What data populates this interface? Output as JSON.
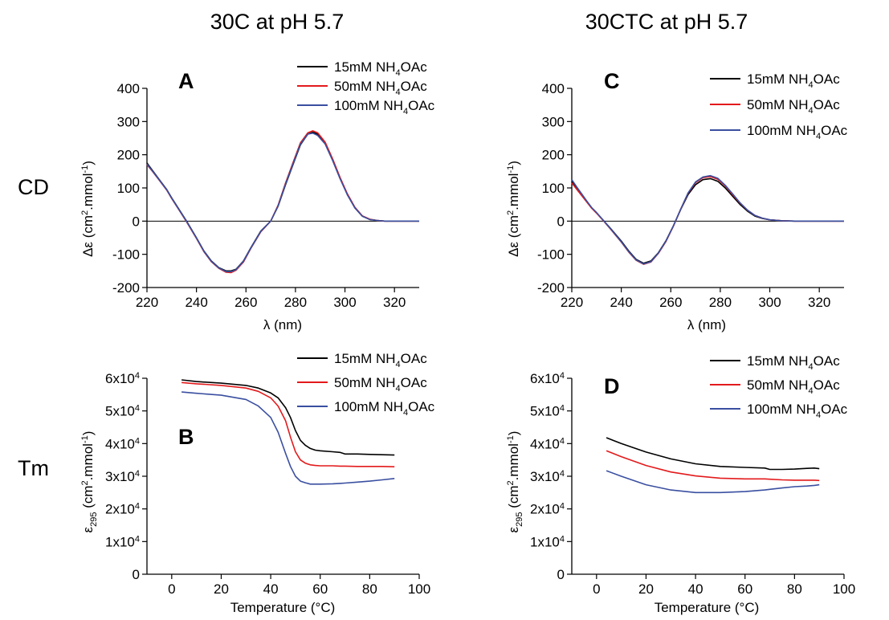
{
  "column_titles": [
    "30C at pH 5.7",
    "30CTC at pH 5.7"
  ],
  "row_labels": [
    "CD",
    "Tm"
  ],
  "colors": {
    "s15": "#000000",
    "s50": "#e31a1c",
    "s100": "#3a4fa0"
  },
  "chart_data": [
    {
      "panel": "A",
      "type": "line",
      "ylabel": "Δε (cm².mmol⁻¹)",
      "xlabel": "λ (nm)",
      "xlim": [
        220,
        330
      ],
      "ylim": [
        -200,
        400
      ],
      "xticks": [
        220,
        240,
        260,
        280,
        300,
        320
      ],
      "yticks": [
        -200,
        -100,
        0,
        100,
        200,
        300,
        400
      ],
      "zero_line": true,
      "legend_position": "top-right",
      "x": [
        220,
        222,
        225,
        228,
        230,
        233,
        236,
        240,
        243,
        246,
        249,
        252,
        254,
        256,
        259,
        262,
        266,
        270,
        273,
        276,
        279,
        282,
        285,
        287,
        289,
        292,
        295,
        298,
        301,
        304,
        307,
        310,
        313,
        316,
        320,
        325,
        330
      ],
      "series": [
        {
          "name": "15mM NH4OAc",
          "values": [
            175,
            155,
            125,
            95,
            70,
            35,
            0,
            -50,
            -90,
            -120,
            -140,
            -150,
            -150,
            -145,
            -120,
            -80,
            -30,
            0,
            45,
            110,
            170,
            230,
            262,
            268,
            262,
            235,
            185,
            130,
            80,
            40,
            15,
            5,
            2,
            0,
            0,
            0,
            0
          ]
        },
        {
          "name": "50mM NH4OAc",
          "values": [
            170,
            152,
            123,
            93,
            68,
            33,
            -2,
            -52,
            -92,
            -122,
            -142,
            -154,
            -155,
            -148,
            -123,
            -82,
            -32,
            0,
            48,
            115,
            176,
            236,
            266,
            272,
            266,
            238,
            188,
            132,
            82,
            42,
            16,
            6,
            2,
            0,
            0,
            0,
            0
          ]
        },
        {
          "name": "100mM NH4OAc",
          "values": [
            172,
            153,
            124,
            94,
            69,
            34,
            -1,
            -51,
            -91,
            -121,
            -141,
            -152,
            -152,
            -146,
            -121,
            -81,
            -31,
            0,
            46,
            112,
            172,
            232,
            262,
            265,
            258,
            232,
            183,
            128,
            79,
            40,
            15,
            5,
            2,
            0,
            0,
            0,
            0
          ]
        }
      ]
    },
    {
      "panel": "B",
      "type": "line",
      "ylabel": "ε295 (cm².mmol⁻¹)",
      "xlabel": "Temperature (°C)",
      "xlim": [
        -10,
        100
      ],
      "ylim": [
        0,
        60000
      ],
      "xticks": [
        0,
        20,
        40,
        60,
        80,
        100
      ],
      "yticks": [
        0,
        10000,
        20000,
        30000,
        40000,
        50000,
        60000
      ],
      "ytick_labels": [
        "0",
        "1x10⁴",
        "2x10⁴",
        "3x10⁴",
        "4x10⁴",
        "5x10⁴",
        "6x10⁴"
      ],
      "legend_position": "top-right",
      "x": [
        4,
        10,
        20,
        30,
        35,
        40,
        43,
        46,
        48,
        50,
        52,
        54,
        56,
        58,
        60,
        65,
        68,
        70,
        75,
        80,
        85,
        90
      ],
      "series": [
        {
          "name": "15mM NH4OAc",
          "values": [
            59500,
            59000,
            58500,
            57800,
            57000,
            55500,
            54000,
            51000,
            48000,
            44000,
            41000,
            39500,
            38500,
            38000,
            37800,
            37500,
            37300,
            36800,
            36800,
            36700,
            36600,
            36500
          ]
        },
        {
          "name": "50mM NH4OAc",
          "values": [
            58700,
            58300,
            57800,
            57000,
            56000,
            54000,
            51500,
            47000,
            42000,
            37500,
            35000,
            34000,
            33500,
            33300,
            33200,
            33200,
            33100,
            33100,
            33000,
            33000,
            33000,
            32900
          ]
        },
        {
          "name": "100mM NH4OAc",
          "values": [
            55800,
            55400,
            54800,
            53500,
            51500,
            48000,
            43500,
            37000,
            33000,
            30000,
            28500,
            28000,
            27600,
            27600,
            27600,
            27700,
            27800,
            27900,
            28200,
            28500,
            28900,
            29300
          ]
        }
      ]
    },
    {
      "panel": "C",
      "type": "line",
      "ylabel": "Δε (cm².mmol⁻¹)",
      "xlabel": "λ (nm)",
      "xlim": [
        220,
        330
      ],
      "ylim": [
        -200,
        400
      ],
      "xticks": [
        220,
        240,
        260,
        280,
        300,
        320
      ],
      "yticks": [
        -200,
        -100,
        0,
        100,
        200,
        300,
        400
      ],
      "zero_line": true,
      "legend_position": "top-right",
      "x": [
        220,
        222,
        224,
        226,
        228,
        230,
        233,
        236,
        240,
        243,
        246,
        249,
        252,
        255,
        258,
        261,
        264,
        267,
        270,
        273,
        276,
        279,
        282,
        285,
        288,
        291,
        294,
        297,
        300,
        305,
        310,
        315,
        320,
        325,
        330
      ],
      "series": [
        {
          "name": "15mM NH4OAc",
          "values": [
            120,
            100,
            80,
            60,
            40,
            25,
            0,
            -25,
            -60,
            -90,
            -115,
            -127,
            -120,
            -95,
            -60,
            -15,
            35,
            80,
            110,
            125,
            128,
            120,
            100,
            75,
            50,
            30,
            15,
            8,
            4,
            1,
            0,
            0,
            0,
            0,
            0
          ]
        },
        {
          "name": "50mM NH4OAc",
          "values": [
            115,
            96,
            77,
            58,
            39,
            24,
            -1,
            -27,
            -63,
            -93,
            -118,
            -130,
            -123,
            -97,
            -62,
            -16,
            36,
            84,
            116,
            131,
            134,
            126,
            106,
            80,
            54,
            33,
            17,
            9,
            4,
            1,
            0,
            0,
            0,
            0,
            0
          ]
        },
        {
          "name": "100mM NH4OAc",
          "values": [
            125,
            103,
            82,
            61,
            41,
            26,
            0,
            -26,
            -62,
            -92,
            -117,
            -129,
            -122,
            -96,
            -61,
            -15,
            36,
            85,
            118,
            133,
            137,
            129,
            108,
            82,
            55,
            33,
            17,
            9,
            4,
            1,
            0,
            0,
            0,
            0,
            0
          ]
        }
      ]
    },
    {
      "panel": "D",
      "type": "line",
      "ylabel": "ε295 (cm².mmol⁻¹)",
      "xlabel": "Temperature (°C)",
      "xlim": [
        -10,
        100
      ],
      "ylim": [
        0,
        60000
      ],
      "xticks": [
        0,
        20,
        40,
        60,
        80,
        100
      ],
      "yticks": [
        0,
        10000,
        20000,
        30000,
        40000,
        50000,
        60000
      ],
      "ytick_labels": [
        "0",
        "1x10⁴",
        "2x10⁴",
        "3x10⁴",
        "4x10⁴",
        "5x10⁴",
        "6x10⁴"
      ],
      "legend_position": "top-right",
      "x": [
        4,
        10,
        20,
        30,
        40,
        50,
        60,
        68,
        70,
        75,
        80,
        85,
        88,
        90
      ],
      "series": [
        {
          "name": "15mM NH4OAc",
          "values": [
            41800,
            40000,
            37400,
            35300,
            33800,
            33000,
            32700,
            32500,
            32100,
            32100,
            32200,
            32400,
            32500,
            32300
          ]
        },
        {
          "name": "50mM NH4OAc",
          "values": [
            37800,
            36000,
            33300,
            31300,
            30100,
            29400,
            29200,
            29200,
            29100,
            28900,
            28800,
            28800,
            28800,
            28700
          ]
        },
        {
          "name": "100mM NH4OAc",
          "values": [
            31700,
            30000,
            27400,
            25800,
            25000,
            25000,
            25300,
            25800,
            26000,
            26400,
            26800,
            27000,
            27200,
            27400
          ]
        }
      ]
    }
  ]
}
